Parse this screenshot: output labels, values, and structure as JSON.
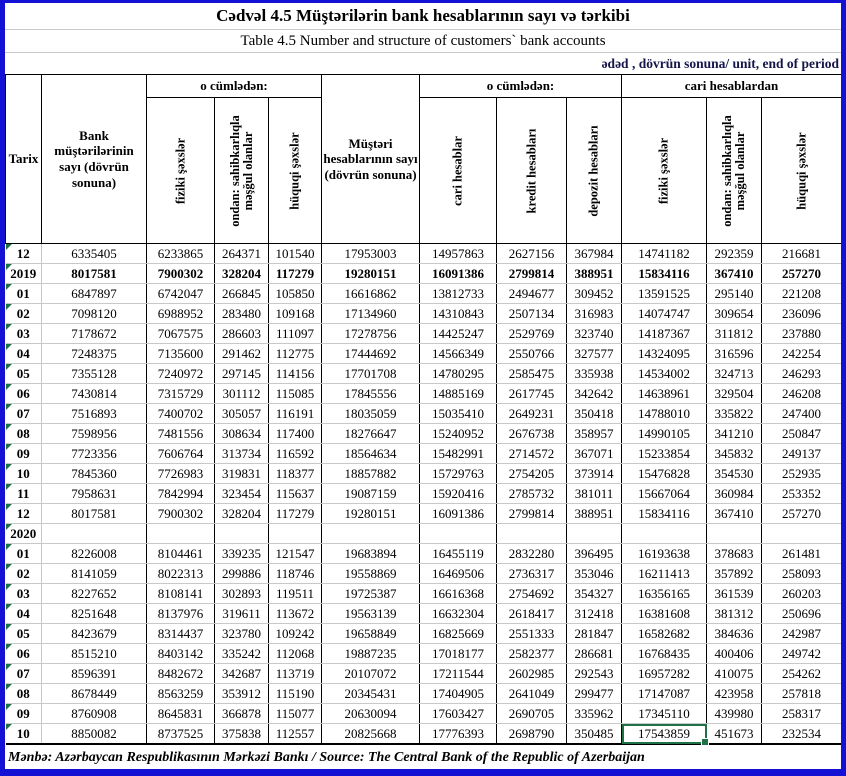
{
  "title_az": "Cədvəl 4.5 Müştərilərin bank hesablarının sayı və tərkibi",
  "title_en": "Table 4.5 Number and structure of customers` bank accounts",
  "unit_note": "ədəd , dövrün sonuna/ unit, end of period",
  "source": "Mənbə: Azərbaycan Respublikasının Mərkəzi Bankı / Source: The Central Bank of the Republic of Azerbaijan",
  "colors": {
    "frame_blue": "#1312d4",
    "selection_green": "#1f7246",
    "comment_triangle_green": "#1d7044",
    "gridline_gray": "#c8c8c8"
  },
  "header": {
    "tarix": "Tarix",
    "bank_customers": "Bank müştərilərinin sayı (dövrün sonuna)",
    "including1": "o cümlədən:",
    "customer_accounts": "Müştəri hesablarının sayı (dövrün sonuna)",
    "including2": "o cümlədən:",
    "from_current": "cari hesablardan",
    "sub": [
      "fiziki şəxslər",
      "ondan: sahibkarlıqla məşğul olanlar",
      "hüquqi şəxslər",
      "cari hesablar",
      "kredit hesabları",
      "depozit hesabları",
      "fiziki şəxslər",
      "ondan: sahibkarlıqla məşğul olanlar",
      "hüquqi şəxslər"
    ]
  },
  "selection": {
    "row": 24,
    "col": 8
  },
  "rows": [
    {
      "label": "12",
      "bold": false,
      "values": [
        6335405,
        6233865,
        264371,
        101540,
        17953003,
        14957863,
        2627156,
        367984,
        14741182,
        292359,
        216681
      ]
    },
    {
      "label": "2019",
      "bold": true,
      "values": [
        8017581,
        7900302,
        328204,
        117279,
        19280151,
        16091386,
        2799814,
        388951,
        15834116,
        367410,
        257270
      ]
    },
    {
      "label": "01",
      "bold": false,
      "values": [
        6847897,
        6742047,
        266845,
        105850,
        16616862,
        13812733,
        2494677,
        309452,
        13591525,
        295140,
        221208
      ]
    },
    {
      "label": "02",
      "bold": false,
      "values": [
        7098120,
        6988952,
        283480,
        109168,
        17134960,
        14310843,
        2507134,
        316983,
        14074747,
        309654,
        236096
      ]
    },
    {
      "label": "03",
      "bold": false,
      "values": [
        7178672,
        7067575,
        286603,
        111097,
        17278756,
        14425247,
        2529769,
        323740,
        14187367,
        311812,
        237880
      ]
    },
    {
      "label": "04",
      "bold": false,
      "values": [
        7248375,
        7135600,
        291462,
        112775,
        17444692,
        14566349,
        2550766,
        327577,
        14324095,
        316596,
        242254
      ]
    },
    {
      "label": "05",
      "bold": false,
      "values": [
        7355128,
        7240972,
        297145,
        114156,
        17701708,
        14780295,
        2585475,
        335938,
        14534002,
        324713,
        246293
      ]
    },
    {
      "label": "06",
      "bold": false,
      "values": [
        7430814,
        7315729,
        301112,
        115085,
        17845556,
        14885169,
        2617745,
        342642,
        14638961,
        329504,
        246208
      ]
    },
    {
      "label": "07",
      "bold": false,
      "values": [
        7516893,
        7400702,
        305057,
        116191,
        18035059,
        15035410,
        2649231,
        350418,
        14788010,
        335822,
        247400
      ]
    },
    {
      "label": "08",
      "bold": false,
      "values": [
        7598956,
        7481556,
        308634,
        117400,
        18276647,
        15240952,
        2676738,
        358957,
        14990105,
        341210,
        250847
      ]
    },
    {
      "label": "09",
      "bold": false,
      "values": [
        7723356,
        7606764,
        313734,
        116592,
        18564634,
        15482991,
        2714572,
        367071,
        15233854,
        345832,
        249137
      ]
    },
    {
      "label": "10",
      "bold": false,
      "values": [
        7845360,
        7726983,
        319831,
        118377,
        18857882,
        15729763,
        2754205,
        373914,
        15476828,
        354530,
        252935
      ]
    },
    {
      "label": "11",
      "bold": false,
      "values": [
        7958631,
        7842994,
        323454,
        115637,
        19087159,
        15920416,
        2785732,
        381011,
        15667064,
        360984,
        253352
      ]
    },
    {
      "label": "12",
      "bold": false,
      "values": [
        8017581,
        7900302,
        328204,
        117279,
        19280151,
        16091386,
        2799814,
        388951,
        15834116,
        367410,
        257270
      ]
    },
    {
      "label": "2020",
      "bold": true,
      "values": [
        "",
        "",
        "",
        "",
        "",
        "",
        "",
        "",
        "",
        "",
        ""
      ]
    },
    {
      "label": "01",
      "bold": false,
      "values": [
        8226008,
        8104461,
        339235,
        121547,
        19683894,
        16455119,
        2832280,
        396495,
        16193638,
        378683,
        261481
      ]
    },
    {
      "label": "02",
      "bold": false,
      "values": [
        8141059,
        8022313,
        299886,
        118746,
        19558869,
        16469506,
        2736317,
        353046,
        16211413,
        357892,
        258093
      ]
    },
    {
      "label": "03",
      "bold": false,
      "values": [
        8227652,
        8108141,
        302893,
        119511,
        19725387,
        16616368,
        2754692,
        354327,
        16356165,
        361539,
        260203
      ]
    },
    {
      "label": "04",
      "bold": false,
      "values": [
        8251648,
        8137976,
        319611,
        113672,
        19563139,
        16632304,
        2618417,
        312418,
        16381608,
        381312,
        250696
      ]
    },
    {
      "label": "05",
      "bold": false,
      "values": [
        8423679,
        8314437,
        323780,
        109242,
        19658849,
        16825669,
        2551333,
        281847,
        16582682,
        384636,
        242987
      ]
    },
    {
      "label": "06",
      "bold": false,
      "values": [
        8515210,
        8403142,
        335242,
        112068,
        19887235,
        17018177,
        2582377,
        286681,
        16768435,
        400406,
        249742
      ]
    },
    {
      "label": "07",
      "bold": false,
      "values": [
        8596391,
        8482672,
        342687,
        113719,
        20107072,
        17211544,
        2602985,
        292543,
        16957282,
        410075,
        254262
      ]
    },
    {
      "label": "08",
      "bold": false,
      "values": [
        8678449,
        8563259,
        353912,
        115190,
        20345431,
        17404905,
        2641049,
        299477,
        17147087,
        423958,
        257818
      ]
    },
    {
      "label": "09",
      "bold": false,
      "values": [
        8760908,
        8645831,
        366878,
        115077,
        20630094,
        17603427,
        2690705,
        335962,
        17345110,
        439980,
        258317
      ]
    },
    {
      "label": "10",
      "bold": false,
      "values": [
        8850082,
        8737525,
        375838,
        112557,
        20825668,
        17776393,
        2698790,
        350485,
        17543859,
        451673,
        232534
      ]
    }
  ]
}
